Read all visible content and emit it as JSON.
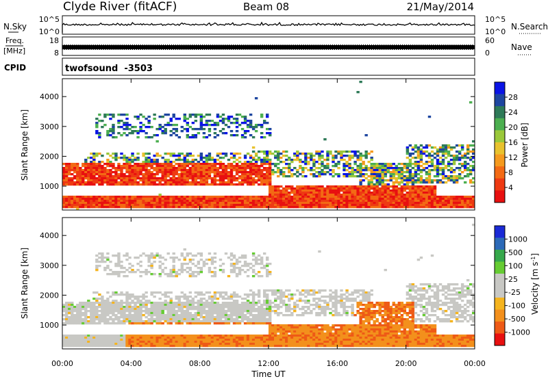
{
  "header": {
    "station": "Clyde River (fitACF)",
    "beam": "Beam 08",
    "date": "21/May/2014"
  },
  "nsky_panel": {
    "left_label": "N.Sky",
    "right_label": "N.Search",
    "tick_top": "10^5",
    "tick_bottom": "10^0",
    "right_tick_top": "10^5",
    "right_tick_bottom": "10^0"
  },
  "freq_panel": {
    "left_label_1": "Freq.",
    "left_label_2": "[MHz]",
    "right_label": "Nave",
    "tick_top": "18",
    "tick_bottom": "8",
    "right_tick_top": "60",
    "right_tick_bottom": "0"
  },
  "cpid_panel": {
    "label": "CPID",
    "value": "twofsound  -3503"
  },
  "chart_data": [
    {
      "type": "heatmap",
      "name": "power-panel",
      "ylabel": "Slant Range [km]",
      "ylim": [
        200,
        4600
      ],
      "yticks": [
        "1000",
        "2000",
        "3000",
        "4000"
      ],
      "xticks": [
        "00:00",
        "04:00",
        "08:00",
        "12:00",
        "16:00",
        "20:00",
        "00:00"
      ],
      "colorbar": {
        "label": "Power [dB]",
        "ticks": [
          "4",
          "8",
          "12",
          "16",
          "20",
          "24",
          "28"
        ],
        "colors": [
          "#0a14e6",
          "#1e46a0",
          "#2e7a58",
          "#4caf50",
          "#9ac83a",
          "#e8c22e",
          "#f59a1e",
          "#f36a14",
          "#ee3a12",
          "#e81010"
        ]
      }
    },
    {
      "type": "heatmap",
      "name": "velocity-panel",
      "ylabel": "Slant Range [km]",
      "xlabel": "Time UT",
      "ylim": [
        200,
        4600
      ],
      "yticks": [
        "1000",
        "2000",
        "3000",
        "4000"
      ],
      "xticks": [
        "00:00",
        "04:00",
        "08:00",
        "12:00",
        "16:00",
        "20:00",
        "00:00"
      ],
      "colorbar": {
        "label": "Velocity [m s",
        "label_sup": "-1",
        "label_end": "]",
        "ticks": [
          "1000",
          "500",
          "100",
          "25",
          "-25",
          "-100",
          "-500",
          "-1000"
        ],
        "colors": [
          "#1a2ad6",
          "#2c6ab8",
          "#36a84c",
          "#66cc33",
          "#c8c8c4",
          "#c8c8c4",
          "#f5b41e",
          "#f3901c",
          "#ee5a16",
          "#e81010"
        ]
      }
    }
  ]
}
